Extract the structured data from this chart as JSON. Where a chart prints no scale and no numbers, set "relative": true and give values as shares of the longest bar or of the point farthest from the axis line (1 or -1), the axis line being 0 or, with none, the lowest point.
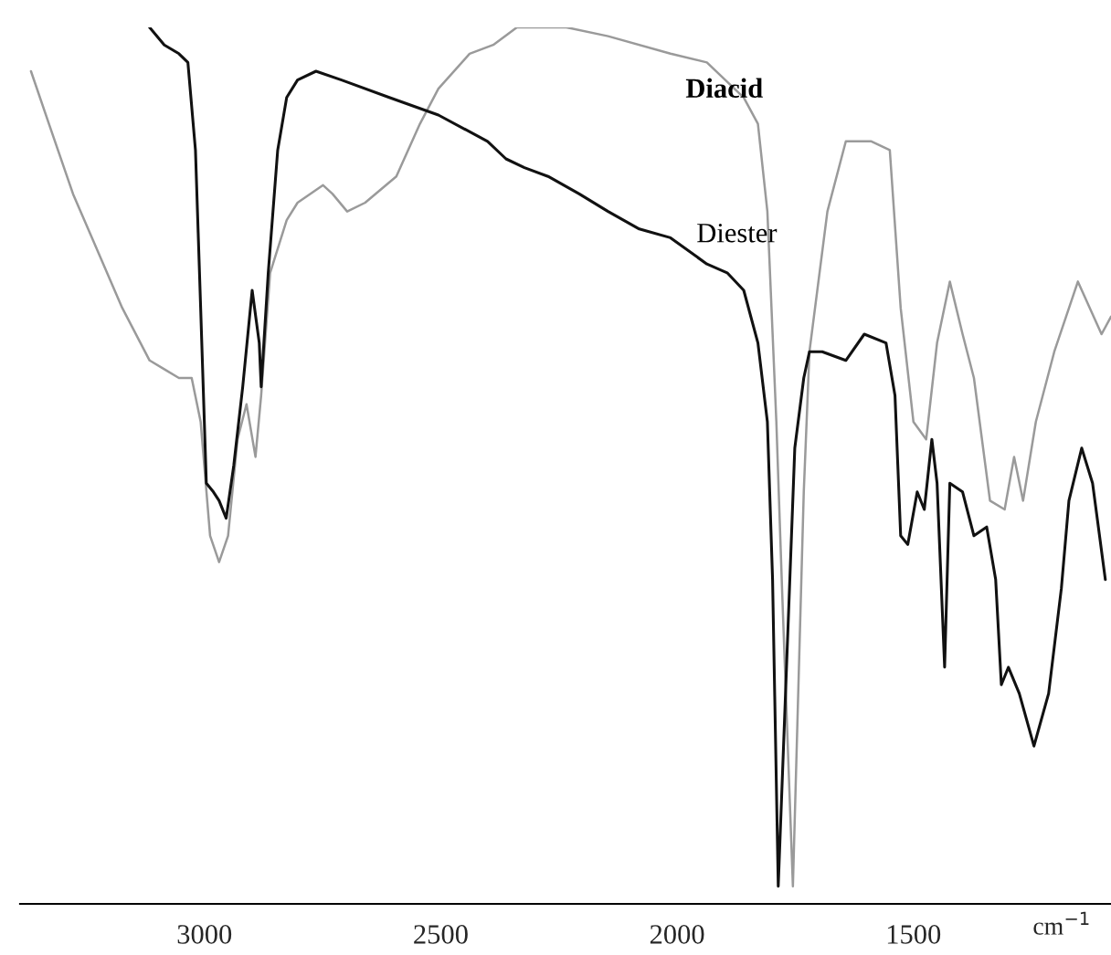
{
  "chart_data": {
    "type": "line",
    "relative": true,
    "xlabel": "cm$^{−1}$",
    "xlim": [
      3390,
      1082
    ],
    "xticks": [
      3000,
      2500,
      2000,
      1500
    ],
    "grid": false,
    "legend": false,
    "marker": "none",
    "line_style": "solid",
    "series": [
      {
        "name": "Diacid",
        "color": "#9a9a9a",
        "x": [
          3367,
          3329,
          3278,
          3174,
          3116,
          3085,
          3054,
          3027,
          3008,
          2988,
          2969,
          2950,
          2930,
          2911,
          2892,
          2880,
          2861,
          2826,
          2803,
          2749,
          2729,
          2698,
          2660,
          2594,
          2544,
          2505,
          2439,
          2389,
          2339,
          2234,
          2146,
          2014,
          1937,
          1859,
          1829,
          1809,
          1790,
          1778,
          1755,
          1732,
          1720,
          1682,
          1643,
          1589,
          1550,
          1527,
          1500,
          1473,
          1450,
          1423,
          1396,
          1372,
          1338,
          1307,
          1287,
          1268,
          1241,
          1202,
          1152,
          1102,
          1082
        ],
        "values": [
          0.95,
          0.89,
          0.81,
          0.68,
          0.62,
          0.61,
          0.6,
          0.6,
          0.55,
          0.42,
          0.39,
          0.42,
          0.53,
          0.57,
          0.51,
          0.58,
          0.72,
          0.78,
          0.8,
          0.82,
          0.81,
          0.79,
          0.8,
          0.83,
          0.89,
          0.93,
          0.97,
          0.98,
          1.0,
          1.0,
          0.99,
          0.97,
          0.96,
          0.92,
          0.89,
          0.79,
          0.55,
          0.36,
          0.02,
          0.47,
          0.63,
          0.79,
          0.87,
          0.87,
          0.86,
          0.68,
          0.55,
          0.53,
          0.64,
          0.71,
          0.65,
          0.6,
          0.46,
          0.45,
          0.51,
          0.46,
          0.55,
          0.63,
          0.71,
          0.65,
          0.67
        ]
      },
      {
        "name": "Diester",
        "color": "#111111",
        "x": [
          3116,
          3085,
          3054,
          3035,
          3019,
          3008,
          2996,
          2981,
          2969,
          2954,
          2938,
          2919,
          2899,
          2884,
          2880,
          2865,
          2845,
          2826,
          2803,
          2764,
          2710,
          2609,
          2505,
          2401,
          2362,
          2323,
          2273,
          2207,
          2146,
          2080,
          2014,
          1937,
          1894,
          1859,
          1829,
          1809,
          1798,
          1786,
          1751,
          1732,
          1720,
          1693,
          1643,
          1604,
          1558,
          1539,
          1527,
          1512,
          1492,
          1477,
          1461,
          1450,
          1434,
          1423,
          1396,
          1372,
          1345,
          1326,
          1314,
          1299,
          1276,
          1245,
          1214,
          1187,
          1171,
          1144,
          1121,
          1094
        ],
        "values": [
          1.0,
          0.98,
          0.97,
          0.96,
          0.86,
          0.68,
          0.48,
          0.47,
          0.46,
          0.44,
          0.5,
          0.59,
          0.7,
          0.64,
          0.59,
          0.72,
          0.86,
          0.92,
          0.94,
          0.95,
          0.94,
          0.92,
          0.9,
          0.87,
          0.85,
          0.84,
          0.83,
          0.81,
          0.79,
          0.77,
          0.76,
          0.73,
          0.72,
          0.7,
          0.64,
          0.55,
          0.37,
          0.02,
          0.52,
          0.6,
          0.63,
          0.63,
          0.62,
          0.65,
          0.64,
          0.58,
          0.42,
          0.41,
          0.47,
          0.45,
          0.53,
          0.48,
          0.27,
          0.48,
          0.47,
          0.42,
          0.43,
          0.37,
          0.25,
          0.27,
          0.24,
          0.18,
          0.24,
          0.36,
          0.46,
          0.52,
          0.48,
          0.37
        ]
      }
    ]
  }
}
